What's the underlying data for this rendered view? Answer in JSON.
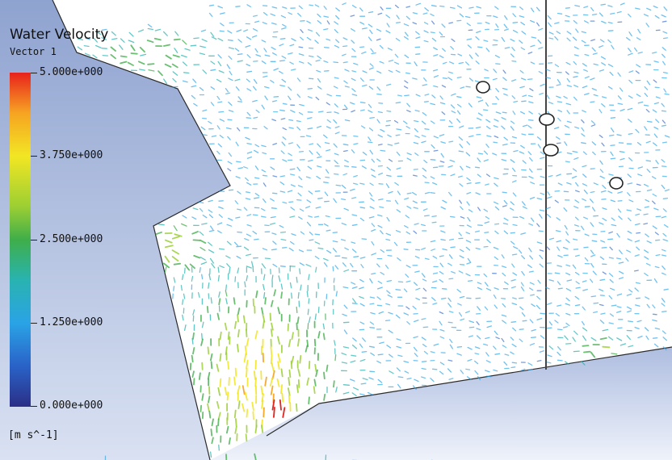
{
  "legend": {
    "title": "Water Velocity",
    "subtitle": "Vector 1",
    "ticks": [
      "5.000e+000",
      "3.750e+000",
      "2.500e+000",
      "1.250e+000",
      "0.000e+000"
    ],
    "units": "[m s^-1]",
    "range": [
      0,
      5
    ],
    "colors": [
      "#e8221c",
      "#f6a322",
      "#f2e624",
      "#9ccf33",
      "#3fae49",
      "#29b3b0",
      "#2aa3e6",
      "#2a61c7",
      "#2a2f86"
    ]
  },
  "scene": {
    "solid_color": "#8fa3d0",
    "background_color": "#ffffff"
  }
}
